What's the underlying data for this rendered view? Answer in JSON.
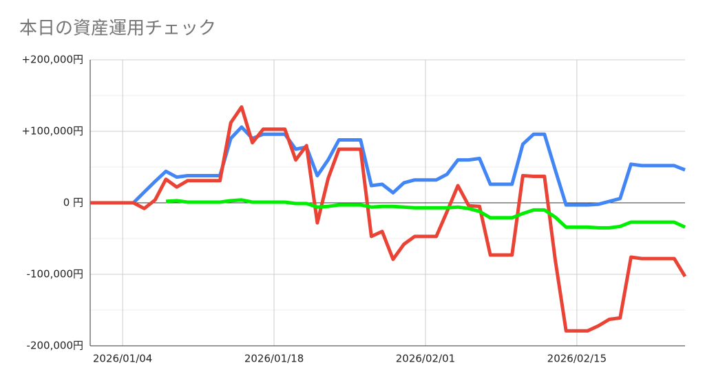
{
  "chart_data": {
    "type": "line",
    "title": "本日の資産運用チェック",
    "x": [
      "2026/01/01",
      "2026/01/02",
      "2026/01/03",
      "2026/01/04",
      "2026/01/05",
      "2026/01/06",
      "2026/01/07",
      "2026/01/08",
      "2026/01/09",
      "2026/01/10",
      "2026/01/11",
      "2026/01/12",
      "2026/01/13",
      "2026/01/14",
      "2026/01/15",
      "2026/01/16",
      "2026/01/17",
      "2026/01/18",
      "2026/01/19",
      "2026/01/20",
      "2026/01/21",
      "2026/01/22",
      "2026/01/23",
      "2026/01/24",
      "2026/01/25",
      "2026/01/26",
      "2026/01/27",
      "2026/01/28",
      "2026/01/29",
      "2026/01/30",
      "2026/01/31",
      "2026/02/01",
      "2026/02/02",
      "2026/02/03",
      "2026/02/04",
      "2026/02/05",
      "2026/02/06",
      "2026/02/07",
      "2026/02/08",
      "2026/02/09",
      "2026/02/10",
      "2026/02/11",
      "2026/02/12",
      "2026/02/13",
      "2026/02/14",
      "2026/02/15",
      "2026/02/16",
      "2026/02/17",
      "2026/02/18",
      "2026/02/19",
      "2026/02/20",
      "2026/02/21",
      "2026/02/22",
      "2026/02/23",
      "2026/02/24",
      "2026/02/25"
    ],
    "xticks": [
      "2026/01/04",
      "2026/01/18",
      "2026/02/01",
      "2026/02/15"
    ],
    "series": [
      {
        "color": "#4285f4",
        "values": [
          0,
          0,
          0,
          0,
          0,
          15000,
          30000,
          44000,
          36000,
          38000,
          38000,
          38000,
          38000,
          90000,
          106000,
          90000,
          96000,
          96000,
          96000,
          75000,
          78000,
          38000,
          60000,
          88000,
          88000,
          88000,
          24000,
          26000,
          14000,
          28000,
          32000,
          32000,
          32000,
          40000,
          60000,
          60000,
          62000,
          26000,
          26000,
          26000,
          82000,
          96000,
          96000,
          46000,
          -3000,
          -3000,
          -3000,
          -2000,
          2000,
          6000,
          54000,
          52000,
          52000,
          52000,
          52000,
          46000
        ]
      },
      {
        "color": "#ea4335",
        "values": [
          0,
          0,
          0,
          0,
          0,
          -8000,
          4000,
          33000,
          22000,
          31000,
          31000,
          31000,
          31000,
          112000,
          134000,
          84000,
          103000,
          103000,
          103000,
          60000,
          80000,
          -28000,
          34000,
          75000,
          75000,
          75000,
          -47000,
          -40000,
          -79000,
          -58000,
          -47000,
          -47000,
          -47000,
          -12000,
          24000,
          -4000,
          -5000,
          -73000,
          -73000,
          -73000,
          38000,
          37000,
          37000,
          -80000,
          -179000,
          -179000,
          -179000,
          -172000,
          -163000,
          -161000,
          -76000,
          -78000,
          -78000,
          -78000,
          -78000,
          -103000
        ]
      },
      {
        "color": "#00ee00",
        "values": [
          null,
          null,
          null,
          null,
          null,
          null,
          null,
          2000,
          3000,
          1000,
          1000,
          1000,
          1000,
          3000,
          4000,
          1000,
          1000,
          1000,
          1000,
          -1000,
          -1000,
          -6000,
          -5000,
          -3000,
          -3000,
          -3000,
          -6000,
          -5000,
          -5000,
          -6000,
          -7000,
          -7000,
          -7000,
          -7000,
          -6000,
          -8000,
          -12000,
          -21000,
          -21000,
          -21000,
          -15000,
          -10000,
          -10000,
          -20000,
          -34000,
          -34000,
          -34000,
          -35000,
          -35000,
          -33000,
          -27000,
          -27000,
          -27000,
          -27000,
          -27000,
          -34000
        ]
      }
    ],
    "ylim": [
      -200000,
      200000
    ],
    "yticks": [
      {
        "value": 200000,
        "label": "+200,000円"
      },
      {
        "value": 100000,
        "label": "+100,000円"
      },
      {
        "value": 0,
        "label": "0 円"
      },
      {
        "value": -100000,
        "label": "-100,000円"
      },
      {
        "value": -200000,
        "label": "-200,000円"
      }
    ],
    "minor_yticks": [
      150000,
      50000,
      -50000,
      -150000
    ],
    "grid": true
  }
}
